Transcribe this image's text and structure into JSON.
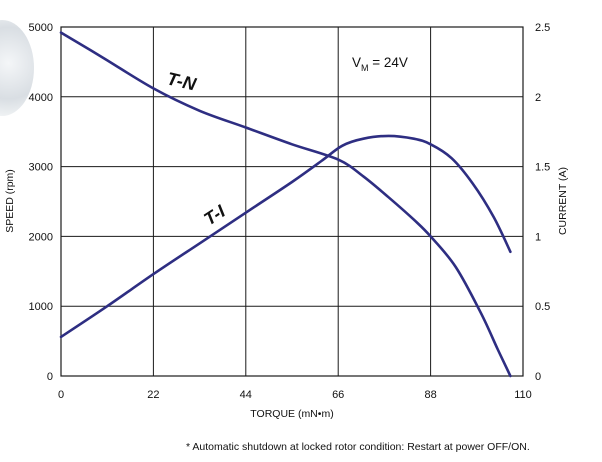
{
  "chart_data": {
    "type": "line",
    "annotation_main": "V",
    "annotation_sub": "M",
    "annotation_rest": " = 24V",
    "xlabel": "TORQUE (mN•m)",
    "ylabel_left": "SPEED (rpm)",
    "ylabel_right": "CURRENT (A)",
    "xlim": [
      0,
      110
    ],
    "ylim_left": [
      0,
      5000
    ],
    "ylim_right": [
      0,
      2.5
    ],
    "x_ticks": [
      "0",
      "22",
      "44",
      "66",
      "88",
      "110"
    ],
    "y_left_ticks": [
      "0",
      "1000",
      "2000",
      "3000",
      "4000",
      "5000"
    ],
    "y_right_ticks": [
      "0",
      "0.5",
      "1",
      "1.5",
      "2",
      "2.5"
    ],
    "grid": true,
    "series": [
      {
        "name": "T-N",
        "axis": "left",
        "x": [
          0,
          10,
          22,
          33,
          44,
          55,
          66,
          72,
          78,
          84,
          88,
          94,
          100,
          104,
          107
        ],
        "y": [
          4920,
          4560,
          4120,
          3800,
          3560,
          3320,
          3100,
          2860,
          2560,
          2240,
          2000,
          1560,
          900,
          380,
          0
        ]
      },
      {
        "name": "T-I",
        "axis": "right",
        "x": [
          0,
          11,
          22,
          33,
          44,
          55,
          62,
          67,
          72,
          78,
          84,
          88,
          93,
          98,
          103,
          107
        ],
        "y": [
          0.28,
          0.5,
          0.73,
          0.95,
          1.17,
          1.39,
          1.54,
          1.65,
          1.7,
          1.72,
          1.7,
          1.66,
          1.56,
          1.38,
          1.14,
          0.89
        ]
      }
    ],
    "color": "#2e2e82",
    "footnote": "* Automatic shutdown at locked rotor condition:  Restart at power OFF/ON."
  }
}
